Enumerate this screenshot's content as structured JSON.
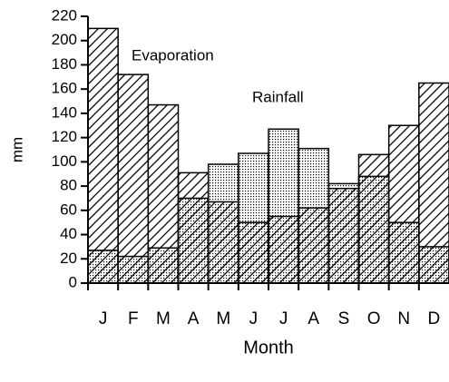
{
  "chart_data": {
    "type": "bar",
    "x_label": "Month",
    "y_label": "mm",
    "categories": [
      "J",
      "F",
      "M",
      "A",
      "M",
      "J",
      "J",
      "A",
      "S",
      "O",
      "N",
      "D"
    ],
    "series": [
      {
        "name": "Rainfall",
        "color": "#000000",
        "values": [
          27,
          22,
          29,
          70,
          98,
          107,
          127,
          111,
          82,
          88,
          50,
          30
        ]
      },
      {
        "name": "Evaporation",
        "color": "#000000",
        "values": [
          210,
          172,
          147,
          91,
          67,
          50,
          55,
          62,
          78,
          106,
          130,
          165
        ]
      }
    ],
    "ylim": [
      0,
      220
    ],
    "yticks": [
      0,
      20,
      40,
      60,
      80,
      100,
      120,
      140,
      160,
      180,
      200,
      220
    ]
  }
}
